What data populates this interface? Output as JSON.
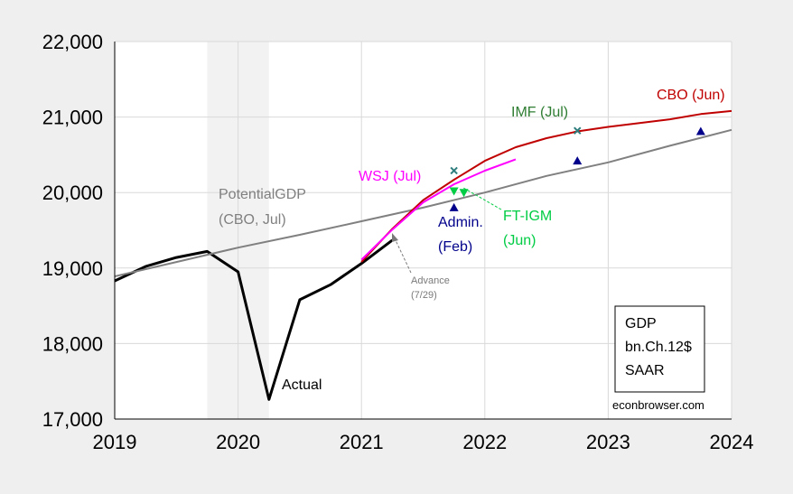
{
  "chart_data": {
    "type": "line",
    "xlim": [
      2019,
      2024
    ],
    "ylim": [
      17000,
      22000
    ],
    "xticks": [
      "2019",
      "2020",
      "2021",
      "2022",
      "2023",
      "2024"
    ],
    "yticks": [
      "17,000",
      "18,000",
      "19,000",
      "20,000",
      "21,000",
      "22,000"
    ],
    "grid": true,
    "recession_shading": {
      "start": 2019.75,
      "end": 2020.25
    },
    "series": [
      {
        "key": "actual",
        "color": "#000000",
        "x": [
          2019.0,
          2019.25,
          2019.5,
          2019.75,
          2020.0,
          2020.25,
          2020.5,
          2020.75,
          2021.0,
          2021.25
        ],
        "y": [
          18830,
          19020,
          19140,
          19220,
          18950,
          17260,
          18580,
          18780,
          19060,
          19370
        ]
      },
      {
        "key": "potential",
        "color": "#808080",
        "x": [
          2019.0,
          2019.5,
          2020.0,
          2020.5,
          2021.0,
          2021.5,
          2022.0,
          2022.5,
          2023.0,
          2023.5,
          2024.0
        ],
        "y": [
          18890,
          19080,
          19270,
          19440,
          19620,
          19800,
          20000,
          20220,
          20400,
          20620,
          20830
        ]
      },
      {
        "key": "cbo",
        "color": "#c00000",
        "x": [
          2021.0,
          2021.25,
          2021.5,
          2021.75,
          2022.0,
          2022.25,
          2022.5,
          2022.75,
          2023.0,
          2023.5,
          2023.75,
          2024.0
        ],
        "y": [
          19080,
          19520,
          19900,
          20170,
          20420,
          20600,
          20720,
          20810,
          20870,
          20970,
          21040,
          21080
        ]
      },
      {
        "key": "wsj",
        "color": "#ff00ff",
        "x": [
          2021.0,
          2021.25,
          2021.5,
          2021.75,
          2022.0,
          2022.25
        ],
        "y": [
          19110,
          19510,
          19870,
          20110,
          20290,
          20440
        ]
      }
    ],
    "points": [
      {
        "key": "imf",
        "marker": "x",
        "color": "#2e7d7d",
        "x": [
          2021.75,
          2022.75
        ],
        "y": [
          20290,
          20820
        ]
      },
      {
        "key": "admin",
        "marker": "triangle-up",
        "color": "#00008b",
        "x": [
          2021.75,
          2022.75,
          2023.75
        ],
        "y": [
          19800,
          20420,
          20810
        ]
      },
      {
        "key": "ftigm",
        "marker": "triangle-down",
        "color": "#00cc44",
        "x": [
          2021.75,
          2021.83
        ],
        "y": [
          20020,
          20000
        ]
      }
    ],
    "labels": {
      "cbo": "CBO (Jun)",
      "imf": "IMF (Jul)",
      "wsj": "WSJ (Jul)",
      "potential_1": "PotentialGDP",
      "potential_2": "(CBO, Jul)",
      "admin_1": "Admin.",
      "admin_2": "(Feb)",
      "ftigm_1": "FT-IGM",
      "ftigm_2": "(Jun)",
      "advance_1": "Advance",
      "advance_2": "(7/29)",
      "actual": "Actual"
    },
    "legend_box": [
      "GDP",
      "bn.Ch.12$",
      "SAAR"
    ],
    "source": "econbrowser.com"
  }
}
